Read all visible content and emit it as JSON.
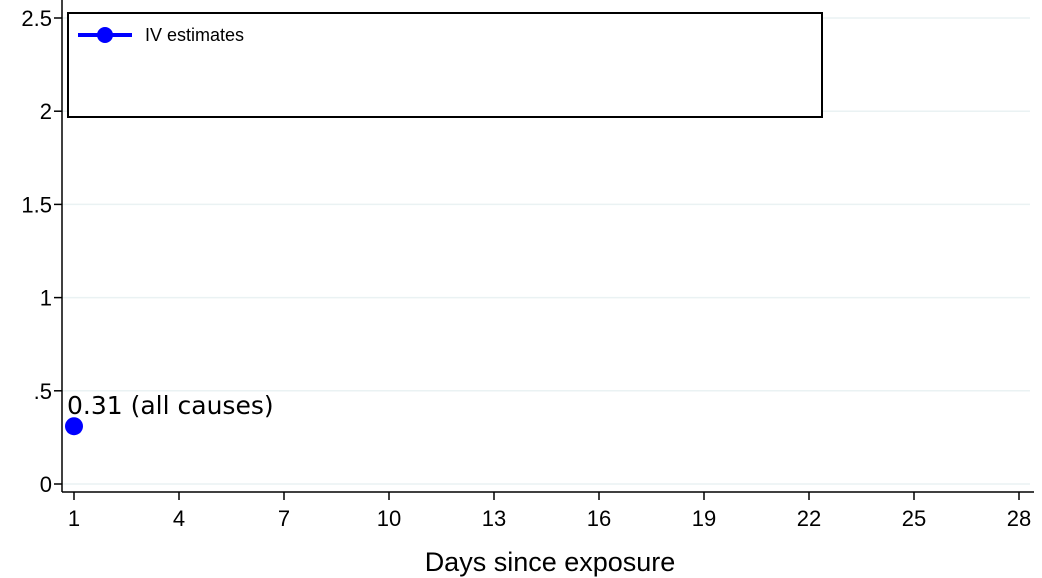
{
  "chart_data": {
    "type": "scatter",
    "title": "",
    "xlabel": "Days since exposure",
    "ylabel": "",
    "xlim": [
      1,
      28
    ],
    "ylim": [
      0,
      2.5
    ],
    "x_ticks": [
      1,
      4,
      7,
      10,
      13,
      16,
      19,
      22,
      25,
      28
    ],
    "y_ticks": [
      0,
      0.5,
      1,
      1.5,
      2,
      2.5
    ],
    "y_tick_labels": [
      "0",
      ".5",
      "1",
      "1.5",
      "2",
      "2.5"
    ],
    "grid": true,
    "legend_position": "top-left",
    "series": [
      {
        "name": "IV estimates",
        "color": "#0000ff",
        "points": [
          {
            "x": 1,
            "y": 0.31,
            "label": "0.31 (all causes)"
          }
        ]
      }
    ]
  },
  "colors": {
    "series": "#0000ff",
    "grid": "#eaf2f3",
    "axis": "#000000"
  }
}
